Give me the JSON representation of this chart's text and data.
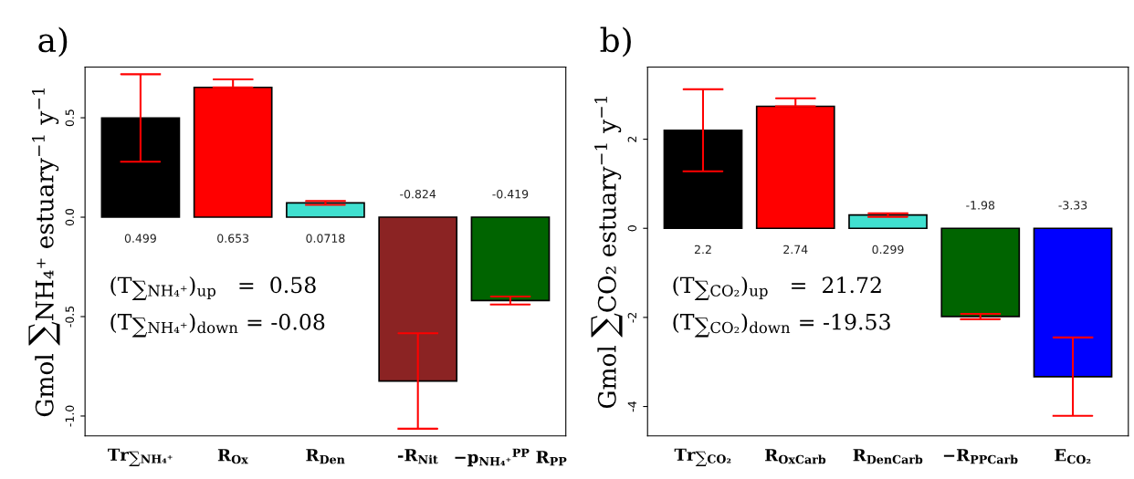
{
  "chart_data": [
    {
      "type": "bar",
      "title": "a)",
      "ylabel": "Gmol ∑NH₄⁺ estuary$^{−1}$ y$^{−1}$",
      "categories": [
        "Tr$_{∑NH₄⁺}$",
        "R$_{Ox}$",
        "R$_{Den}$",
        "-R$_{Nit}$",
        "−p$_{NH₄⁺}$$^{PP}$ R$_{PP}$"
      ],
      "values": [
        0.499,
        0.653,
        0.0718,
        -0.824,
        -0.419
      ],
      "colors": [
        "#000000",
        "#ff0000",
        "#40e0d0",
        "#8b2323",
        "#006400"
      ],
      "errors": [
        [
          0.279,
          0.719
        ],
        [
          0.653,
          0.693
        ],
        [
          0.0618,
          0.0818
        ],
        [
          -1.064,
          -0.584
        ],
        [
          -0.439,
          -0.399
        ]
      ],
      "ylim": [
        -1.1,
        0.755
      ],
      "yticks": [
        {
          "value": -1.0,
          "label": "-1.0"
        },
        {
          "value": -0.5,
          "label": "-0.5"
        },
        {
          "value": 0.0,
          "label": "0.0"
        },
        {
          "value": 0.5,
          "label": "0.5"
        }
      ],
      "data_labels": true,
      "grid": false,
      "legend": false,
      "annotations": [
        "(T$_{∑NH₄⁺}$)$_{up}$   =  0.58",
        "(T$_{∑NH₄⁺}$)$_{down}$ = -0.08"
      ]
    },
    {
      "type": "bar",
      "title": "b)",
      "ylabel": "Gmol ∑CO₂ estuary$^{−1}$ y$^{−1}$",
      "categories": [
        "Tr$_{∑CO₂}$",
        "R$_{OxCarb}$",
        "R$_{DenCarb}$",
        "−R$_{PPCarb}$",
        "E$_{CO₂}$"
      ],
      "values": [
        2.2,
        2.74,
        0.299,
        -1.98,
        -3.33
      ],
      "colors": [
        "#000000",
        "#ff0000",
        "#40e0d0",
        "#006400",
        "#0000ff"
      ],
      "errors": [
        [
          1.28,
          3.12
        ],
        [
          2.74,
          2.92
        ],
        [
          0.259,
          0.339
        ],
        [
          -2.04,
          -1.92
        ],
        [
          -4.21,
          -2.45
        ]
      ],
      "ylim": [
        -4.66,
        3.62
      ],
      "yticks": [
        -4,
        -2,
        0,
        2
      ],
      "data_labels": true,
      "grid": false,
      "legend": false,
      "annotations": [
        "(T$_{∑CO₂}$)$_{up}$   =  21.72",
        "(T$_{∑CO₂}$)$_{down}$ = -19.53"
      ]
    }
  ]
}
